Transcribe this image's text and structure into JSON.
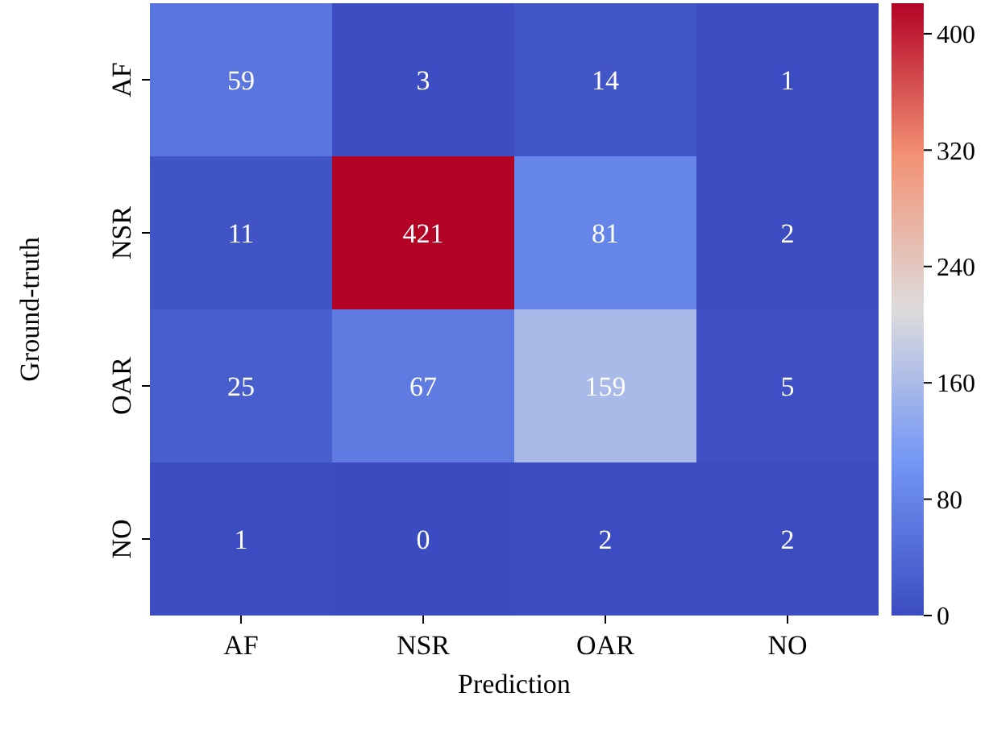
{
  "chart_data": {
    "type": "heatmap",
    "xlabel": "Prediction",
    "ylabel": "Ground-truth",
    "categories": [
      "AF",
      "NSR",
      "OAR",
      "NO"
    ],
    "y_categories": [
      "AF",
      "NSR",
      "OAR",
      "NO"
    ],
    "cells": [
      [
        59,
        3,
        14,
        1
      ],
      [
        11,
        421,
        81,
        2
      ],
      [
        25,
        67,
        159,
        5
      ],
      [
        1,
        0,
        2,
        2
      ]
    ],
    "clim": [
      0,
      421
    ],
    "cticks": [
      0,
      80,
      160,
      240,
      320,
      400
    ],
    "data_labels": true
  }
}
